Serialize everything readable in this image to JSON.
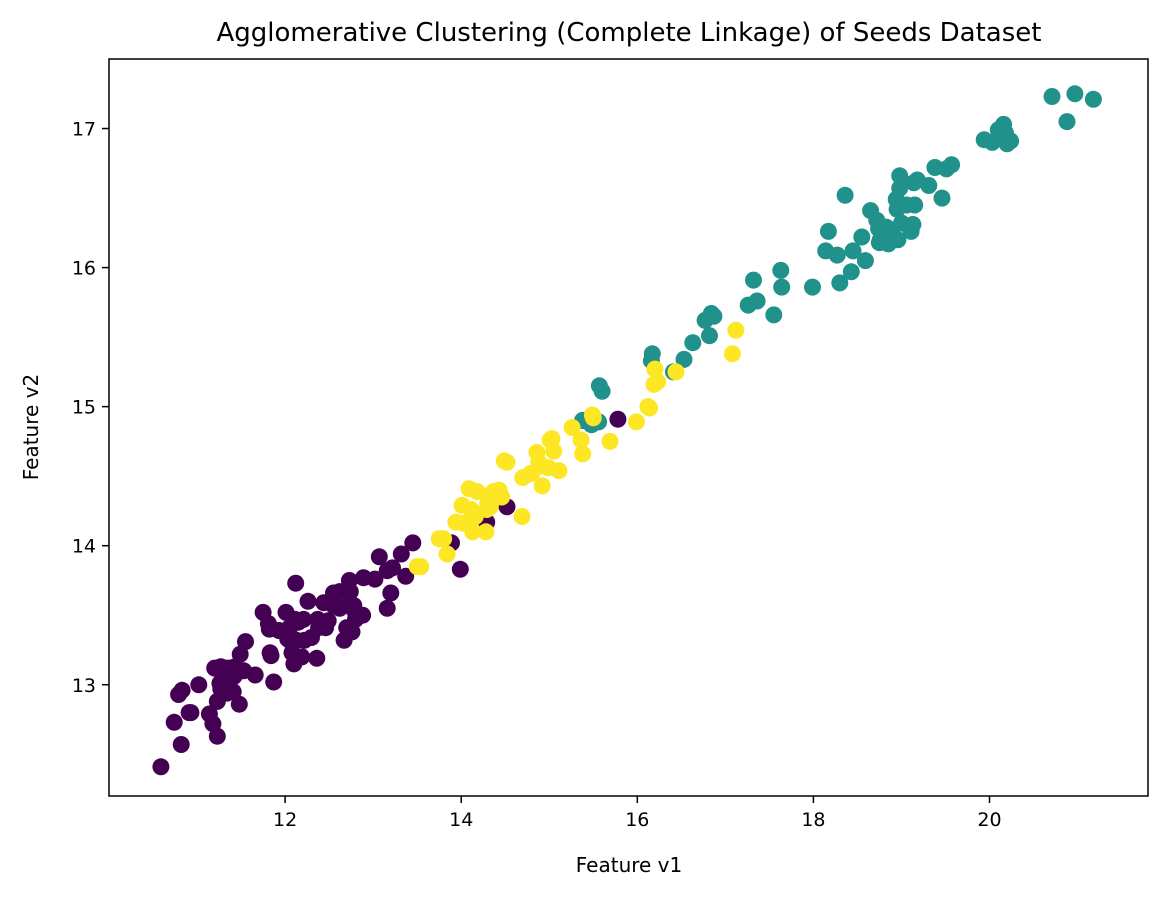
{
  "chart_data": {
    "type": "scatter",
    "title": "Agglomerative Clustering (Complete Linkage) of Seeds Dataset",
    "xlabel": "Feature v1",
    "ylabel": "Feature v2",
    "xlim": [
      10.0,
      21.8
    ],
    "ylim": [
      12.2,
      17.5
    ],
    "x_ticks": [
      12,
      14,
      16,
      18,
      20
    ],
    "y_ticks": [
      13,
      14,
      15,
      16,
      17
    ],
    "grid": false,
    "legend": "none",
    "colors": {
      "cluster_0": "#440154",
      "cluster_1": "#21918c",
      "cluster_2": "#fde725"
    },
    "series": [
      {
        "color_key": "cluster_0",
        "points": [
          [
            10.59,
            12.41
          ],
          [
            10.74,
            12.73
          ],
          [
            10.79,
            12.93
          ],
          [
            10.82,
            12.57
          ],
          [
            10.83,
            12.96
          ],
          [
            10.91,
            12.8
          ],
          [
            10.93,
            12.8
          ],
          [
            11.02,
            13.0
          ],
          [
            11.14,
            12.79
          ],
          [
            11.18,
            12.72
          ],
          [
            11.2,
            13.12
          ],
          [
            11.23,
            12.63
          ],
          [
            11.23,
            12.88
          ],
          [
            11.26,
            13.01
          ],
          [
            11.27,
            12.97
          ],
          [
            11.29,
            13.07
          ],
          [
            11.34,
            12.94
          ],
          [
            11.35,
            13.12
          ],
          [
            11.36,
            13.05
          ],
          [
            11.4,
            13.08
          ],
          [
            11.41,
            12.95
          ],
          [
            11.42,
            13.06
          ],
          [
            11.43,
            13.13
          ],
          [
            11.48,
            12.86
          ],
          [
            11.49,
            13.22
          ],
          [
            11.53,
            13.1
          ],
          [
            11.55,
            13.31
          ],
          [
            11.66,
            13.07
          ],
          [
            11.75,
            13.52
          ],
          [
            11.81,
            13.44
          ],
          [
            11.82,
            13.4
          ],
          [
            11.83,
            13.23
          ],
          [
            11.84,
            13.21
          ],
          [
            11.87,
            13.02
          ],
          [
            11.93,
            13.39
          ],
          [
            12.01,
            13.52
          ],
          [
            12.03,
            13.33
          ],
          [
            12.05,
            13.41
          ],
          [
            12.05,
            13.32
          ],
          [
            12.08,
            13.23
          ],
          [
            12.1,
            13.15
          ],
          [
            12.11,
            13.47
          ],
          [
            12.12,
            13.73
          ],
          [
            12.13,
            13.32
          ],
          [
            12.15,
            13.45
          ],
          [
            12.19,
            13.2
          ],
          [
            12.21,
            13.47
          ],
          [
            12.22,
            13.32
          ],
          [
            12.26,
            13.6
          ],
          [
            12.3,
            13.34
          ],
          [
            12.36,
            13.19
          ],
          [
            12.37,
            13.47
          ],
          [
            12.38,
            13.41
          ],
          [
            12.44,
            13.59
          ],
          [
            12.46,
            13.41
          ],
          [
            12.49,
            13.46
          ],
          [
            12.55,
            13.57
          ],
          [
            12.55,
            13.66
          ],
          [
            12.62,
            13.67
          ],
          [
            12.67,
            13.32
          ],
          [
            12.7,
            13.41
          ],
          [
            12.72,
            13.57
          ],
          [
            12.73,
            13.75
          ],
          [
            12.74,
            13.67
          ],
          [
            12.76,
            13.38
          ],
          [
            12.78,
            13.57
          ],
          [
            12.79,
            13.53
          ],
          [
            12.8,
            13.47
          ],
          [
            12.88,
            13.5
          ],
          [
            12.89,
            13.77
          ],
          [
            13.02,
            13.76
          ],
          [
            13.07,
            13.92
          ],
          [
            13.16,
            13.82
          ],
          [
            13.2,
            13.66
          ],
          [
            13.22,
            13.84
          ],
          [
            13.32,
            13.94
          ],
          [
            13.37,
            13.78
          ],
          [
            13.45,
            14.02
          ],
          [
            13.89,
            14.02
          ],
          [
            13.99,
            13.83
          ],
          [
            14.29,
            14.17
          ],
          [
            14.52,
            14.28
          ],
          [
            15.78,
            14.91
          ],
          [
            15.38,
            14.9
          ],
          [
            12.62,
            13.55
          ],
          [
            11.27,
            13.13
          ],
          [
            13.16,
            13.55
          ],
          [
            12.08,
            13.23
          ]
        ]
      },
      {
        "color_key": "cluster_1",
        "points": [
          [
            15.38,
            14.9
          ],
          [
            15.48,
            14.87
          ],
          [
            15.57,
            15.15
          ],
          [
            15.6,
            15.11
          ],
          [
            15.56,
            14.89
          ],
          [
            16.16,
            15.33
          ],
          [
            16.17,
            15.38
          ],
          [
            16.41,
            15.25
          ],
          [
            16.53,
            15.34
          ],
          [
            16.63,
            15.46
          ],
          [
            16.77,
            15.62
          ],
          [
            16.82,
            15.51
          ],
          [
            16.84,
            15.67
          ],
          [
            16.87,
            15.65
          ],
          [
            17.26,
            15.73
          ],
          [
            17.32,
            15.91
          ],
          [
            17.36,
            15.76
          ],
          [
            17.55,
            15.66
          ],
          [
            17.63,
            15.98
          ],
          [
            17.64,
            15.86
          ],
          [
            17.99,
            15.86
          ],
          [
            18.14,
            16.12
          ],
          [
            18.17,
            16.26
          ],
          [
            18.27,
            16.09
          ],
          [
            18.3,
            15.89
          ],
          [
            18.36,
            16.52
          ],
          [
            18.43,
            15.97
          ],
          [
            18.45,
            16.12
          ],
          [
            18.55,
            16.22
          ],
          [
            18.59,
            16.05
          ],
          [
            18.65,
            16.41
          ],
          [
            18.72,
            16.34
          ],
          [
            18.75,
            16.18
          ],
          [
            18.76,
            16.2
          ],
          [
            18.81,
            16.29
          ],
          [
            18.83,
            16.29
          ],
          [
            18.85,
            16.17
          ],
          [
            18.88,
            16.26
          ],
          [
            18.89,
            16.23
          ],
          [
            18.94,
            16.49
          ],
          [
            18.95,
            16.42
          ],
          [
            18.96,
            16.2
          ],
          [
            18.98,
            16.57
          ],
          [
            18.98,
            16.66
          ],
          [
            19.06,
            16.45
          ],
          [
            19.11,
            16.26
          ],
          [
            19.13,
            16.31
          ],
          [
            19.14,
            16.61
          ],
          [
            19.15,
            16.45
          ],
          [
            19.18,
            16.63
          ],
          [
            19.31,
            16.59
          ],
          [
            19.38,
            16.72
          ],
          [
            19.46,
            16.5
          ],
          [
            19.51,
            16.71
          ],
          [
            19.57,
            16.74
          ],
          [
            19.94,
            16.92
          ],
          [
            20.03,
            16.9
          ],
          [
            20.1,
            16.99
          ],
          [
            20.16,
            17.03
          ],
          [
            20.2,
            16.89
          ],
          [
            20.24,
            16.91
          ],
          [
            20.71,
            17.23
          ],
          [
            20.88,
            17.05
          ],
          [
            20.97,
            17.25
          ],
          [
            21.18,
            17.21
          ],
          [
            20.18,
            16.97
          ],
          [
            18.74,
            16.28
          ],
          [
            19.0,
            16.32
          ]
        ]
      },
      {
        "color_key": "cluster_2",
        "points": [
          [
            13.5,
            13.85
          ],
          [
            13.54,
            13.85
          ],
          [
            13.75,
            14.05
          ],
          [
            13.8,
            14.05
          ],
          [
            13.84,
            13.94
          ],
          [
            13.94,
            14.17
          ],
          [
            14.01,
            14.29
          ],
          [
            14.03,
            14.16
          ],
          [
            14.09,
            14.41
          ],
          [
            14.11,
            14.26
          ],
          [
            14.11,
            14.18
          ],
          [
            14.13,
            14.1
          ],
          [
            14.16,
            14.21
          ],
          [
            14.18,
            14.39
          ],
          [
            14.28,
            14.1
          ],
          [
            14.29,
            14.26
          ],
          [
            14.33,
            14.28
          ],
          [
            14.34,
            14.37
          ],
          [
            14.37,
            14.39
          ],
          [
            14.43,
            14.4
          ],
          [
            14.46,
            14.35
          ],
          [
            14.49,
            14.61
          ],
          [
            14.52,
            14.6
          ],
          [
            14.69,
            14.21
          ],
          [
            14.7,
            14.49
          ],
          [
            14.79,
            14.52
          ],
          [
            14.8,
            14.52
          ],
          [
            14.86,
            14.67
          ],
          [
            14.88,
            14.57
          ],
          [
            14.92,
            14.43
          ],
          [
            14.99,
            14.56
          ],
          [
            15.01,
            14.76
          ],
          [
            15.03,
            14.77
          ],
          [
            15.05,
            14.68
          ],
          [
            15.11,
            14.54
          ],
          [
            15.26,
            14.85
          ],
          [
            15.36,
            14.76
          ],
          [
            15.38,
            14.66
          ],
          [
            15.49,
            14.94
          ],
          [
            15.5,
            14.92
          ],
          [
            15.69,
            14.75
          ],
          [
            15.99,
            14.89
          ],
          [
            16.12,
            15.0
          ],
          [
            16.14,
            14.99
          ],
          [
            16.19,
            15.16
          ],
          [
            16.2,
            15.27
          ],
          [
            16.23,
            15.18
          ],
          [
            16.44,
            15.25
          ],
          [
            17.08,
            15.38
          ],
          [
            17.12,
            15.55
          ],
          [
            14.3,
            14.3
          ],
          [
            14.88,
            14.6
          ]
        ]
      }
    ]
  }
}
